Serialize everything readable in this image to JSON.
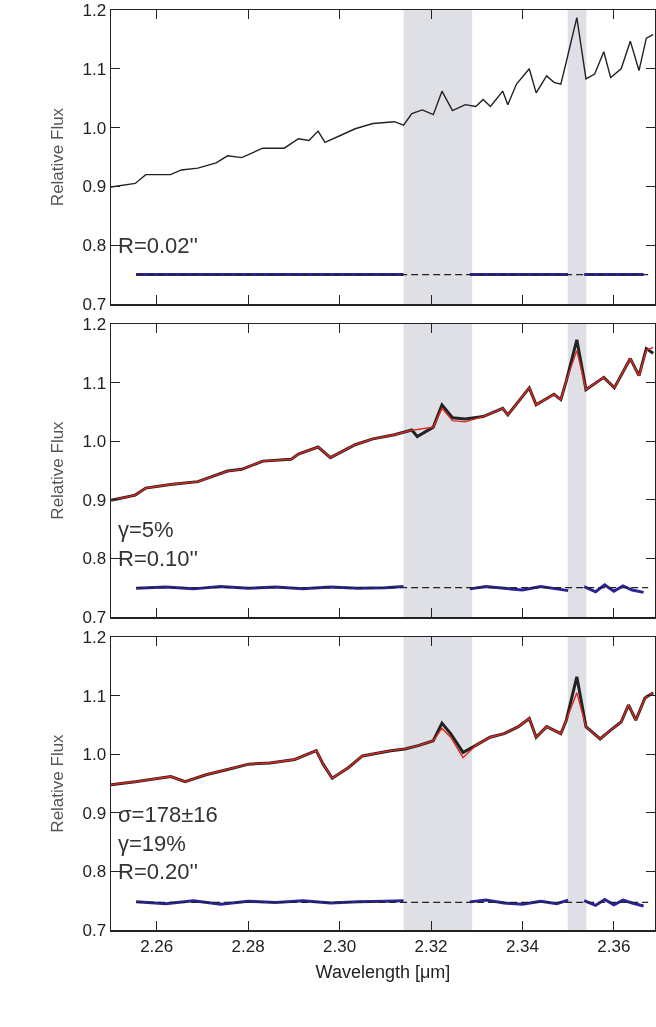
{
  "chart_data": [
    {
      "type": "line",
      "ylabel": "Relative Flux",
      "xlim": [
        2.25,
        2.369
      ],
      "ylim": [
        0.7,
        1.2
      ],
      "xticks": [
        {
          "value": 2.26,
          "label": null
        },
        {
          "value": 2.28,
          "label": null
        },
        {
          "value": 2.3,
          "label": null
        },
        {
          "value": 2.32,
          "label": null
        },
        {
          "value": 2.34,
          "label": null
        },
        {
          "value": 2.36,
          "label": null
        }
      ],
      "yticks": [
        {
          "value": 0.7,
          "label": "0.7"
        },
        {
          "value": 0.8,
          "label": "0.8"
        },
        {
          "value": 0.9,
          "label": "0.9"
        },
        {
          "value": 1.0,
          "label": "1.0"
        },
        {
          "value": 1.1,
          "label": "1.1"
        },
        {
          "value": 1.2,
          "label": "1.2"
        }
      ],
      "tick_labels": "y",
      "grid": false,
      "bands": [
        {
          "axis": "x",
          "from": 2.314,
          "to": 2.329,
          "color": "#dfe0e5"
        },
        {
          "axis": "x",
          "from": 2.3499,
          "to": 2.354,
          "color": "#dfe0e5"
        }
      ],
      "annotations": [
        "R=0.02''"
      ],
      "series": [
        {
          "color": "#222222",
          "x": [
            2.25,
            2.2553,
            2.2576,
            2.263,
            2.2654,
            2.269,
            2.273,
            2.2755,
            2.2786,
            2.2832,
            2.2879,
            2.291,
            2.2933,
            2.2953,
            2.2968,
            2.3003,
            2.3034,
            2.3073,
            2.312,
            2.314,
            2.3158,
            2.3181,
            2.3205,
            2.3224,
            2.3247,
            2.3275,
            2.3298,
            2.3314,
            2.333,
            2.3357,
            2.3368,
            2.3387,
            2.3415,
            2.343,
            2.3453,
            2.3469,
            2.3484,
            2.3496,
            2.3519,
            2.3539,
            2.3558,
            2.3578,
            2.3593,
            2.3616,
            2.3636,
            2.3655,
            2.3671,
            2.3686
          ],
          "values": [
            0.899,
            0.905,
            0.92,
            0.92,
            0.928,
            0.931,
            0.94,
            0.952,
            0.949,
            0.965,
            0.965,
            0.981,
            0.978,
            0.994,
            0.975,
            0.987,
            0.998,
            1.007,
            1.01,
            1.004,
            1.024,
            1.03,
            1.022,
            1.062,
            1.029,
            1.039,
            1.036,
            1.048,
            1.036,
            1.062,
            1.039,
            1.074,
            1.1,
            1.059,
            1.088,
            1.077,
            1.074,
            1.112,
            1.187,
            1.083,
            1.091,
            1.129,
            1.085,
            1.1,
            1.147,
            1.097,
            1.152,
            1.158
          ]
        },
        {
          "color": "#2a2496",
          "x": [
            2.2555,
            2.262,
            2.268,
            2.274,
            2.28,
            2.286,
            2.292,
            2.298,
            2.304,
            2.31,
            2.314,
            2.321,
            2.3285,
            2.332,
            2.336,
            2.34,
            2.344,
            2.3475,
            2.35,
            2.352,
            2.3535,
            2.356,
            2.358,
            2.36,
            2.362,
            2.364,
            2.3665
          ],
          "values": [
            0.75,
            0.75,
            0.75,
            0.75,
            0.75,
            0.75,
            0.75,
            0.75,
            0.75,
            0.75,
            0.75,
            null,
            0.75,
            0.75,
            0.75,
            0.75,
            0.75,
            0.75,
            0.75,
            null,
            0.75,
            0.75,
            0.75,
            0.75,
            0.75,
            0.75,
            0.75
          ]
        },
        {
          "color": "#222222",
          "line_style": "dashed",
          "x": [
            2.2555,
            2.3675
          ],
          "values": [
            0.75,
            0.75
          ]
        }
      ]
    },
    {
      "type": "line",
      "ylabel": "Relative Flux",
      "xlim": [
        2.25,
        2.369
      ],
      "ylim": [
        0.7,
        1.2
      ],
      "xticks": [
        {
          "value": 2.26,
          "label": null
        },
        {
          "value": 2.28,
          "label": null
        },
        {
          "value": 2.3,
          "label": null
        },
        {
          "value": 2.32,
          "label": null
        },
        {
          "value": 2.34,
          "label": null
        },
        {
          "value": 2.36,
          "label": null
        }
      ],
      "yticks": [
        {
          "value": 0.7,
          "label": "0.7"
        },
        {
          "value": 0.8,
          "label": "0.8"
        },
        {
          "value": 0.9,
          "label": "0.9"
        },
        {
          "value": 1.0,
          "label": "1.0"
        },
        {
          "value": 1.1,
          "label": "1.1"
        },
        {
          "value": 1.2,
          "label": "1.2"
        }
      ],
      "tick_labels": "y",
      "grid": false,
      "bands": [
        {
          "axis": "x",
          "from": 2.314,
          "to": 2.329,
          "color": "#dfe0e5"
        },
        {
          "axis": "x",
          "from": 2.3499,
          "to": 2.354,
          "color": "#dfe0e5"
        }
      ],
      "annotations": [
        "γ=5%",
        "R=0.10''"
      ],
      "series": [
        {
          "color": "#222222",
          "x": [
            2.25,
            2.2553,
            2.2576,
            2.263,
            2.269,
            2.2755,
            2.2786,
            2.2832,
            2.2894,
            2.291,
            2.2953,
            2.298,
            2.3034,
            2.3073,
            2.312,
            2.3158,
            2.317,
            2.3205,
            2.3224,
            2.3247,
            2.3275,
            2.3314,
            2.3357,
            2.3368,
            2.3415,
            2.343,
            2.3469,
            2.3484,
            2.3496,
            2.3519,
            2.3539,
            2.3578,
            2.3601,
            2.3636,
            2.3655,
            2.3671,
            2.3686
          ],
          "values": [
            0.899,
            0.908,
            0.92,
            0.926,
            0.931,
            0.949,
            0.952,
            0.966,
            0.969,
            0.978,
            0.99,
            0.972,
            0.994,
            1.004,
            1.011,
            1.019,
            1.008,
            1.024,
            1.062,
            1.04,
            1.038,
            1.042,
            1.056,
            1.045,
            1.091,
            1.062,
            1.08,
            1.071,
            1.103,
            1.173,
            1.088,
            1.109,
            1.091,
            1.141,
            1.112,
            1.158,
            1.15
          ]
        },
        {
          "color": "#e0281e",
          "x": [
            2.25,
            2.2553,
            2.2576,
            2.263,
            2.269,
            2.2755,
            2.2786,
            2.2832,
            2.2894,
            2.291,
            2.2953,
            2.298,
            2.3034,
            2.3073,
            2.312,
            2.3158,
            2.317,
            2.3205,
            2.3224,
            2.3247,
            2.3275,
            2.3314,
            2.3357,
            2.3368,
            2.3415,
            2.343,
            2.3469,
            2.3484,
            2.3496,
            2.3519,
            2.3539,
            2.3578,
            2.3601,
            2.3636,
            2.3655,
            2.3671,
            2.3686
          ],
          "values": [
            0.899,
            0.908,
            0.92,
            0.926,
            0.931,
            0.949,
            0.952,
            0.966,
            0.969,
            0.978,
            0.99,
            0.972,
            0.994,
            1.004,
            1.011,
            1.019,
            1.02,
            1.024,
            1.056,
            1.035,
            1.033,
            1.042,
            1.056,
            1.045,
            1.091,
            1.062,
            1.08,
            1.071,
            1.103,
            1.155,
            1.088,
            1.109,
            1.091,
            1.141,
            1.112,
            1.155,
            1.16
          ]
        },
        {
          "color": "#2a2496",
          "x": [
            2.2555,
            2.262,
            2.268,
            2.274,
            2.28,
            2.286,
            2.292,
            2.298,
            2.304,
            2.31,
            2.314,
            2.321,
            2.3285,
            2.332,
            2.336,
            2.34,
            2.344,
            2.3475,
            2.35,
            2.352,
            2.3535,
            2.356,
            2.358,
            2.36,
            2.362,
            2.364,
            2.3665
          ],
          "values": [
            0.749,
            0.751,
            0.748,
            0.752,
            0.749,
            0.751,
            0.748,
            0.751,
            0.749,
            0.75,
            0.752,
            null,
            0.748,
            0.752,
            0.749,
            0.746,
            0.752,
            0.748,
            0.745,
            null,
            0.752,
            0.743,
            0.755,
            0.744,
            0.753,
            0.746,
            0.742
          ]
        },
        {
          "color": "#222222",
          "line_style": "dashed",
          "x": [
            2.2555,
            2.3675
          ],
          "values": [
            0.75,
            0.75
          ]
        }
      ]
    },
    {
      "type": "line",
      "ylabel": "Relative Flux",
      "xlabel": "Wavelength [μm]",
      "xlim": [
        2.25,
        2.369
      ],
      "ylim": [
        0.7,
        1.2
      ],
      "xticks": [
        {
          "value": 2.26,
          "label": "2.26"
        },
        {
          "value": 2.28,
          "label": "2.28"
        },
        {
          "value": 2.3,
          "label": "2.30"
        },
        {
          "value": 2.32,
          "label": "2.32"
        },
        {
          "value": 2.34,
          "label": "2.34"
        },
        {
          "value": 2.36,
          "label": "2.36"
        }
      ],
      "yticks": [
        {
          "value": 0.7,
          "label": "0.7"
        },
        {
          "value": 0.8,
          "label": "0.8"
        },
        {
          "value": 0.9,
          "label": "0.9"
        },
        {
          "value": 1.0,
          "label": "1.0"
        },
        {
          "value": 1.1,
          "label": "1.1"
        },
        {
          "value": 1.2,
          "label": "1.2"
        }
      ],
      "grid": false,
      "bands": [
        {
          "axis": "x",
          "from": 2.314,
          "to": 2.329,
          "color": "#dfe0e5"
        },
        {
          "axis": "x",
          "from": 2.3499,
          "to": 2.354,
          "color": "#dfe0e5"
        }
      ],
      "annotations": [
        "σ=178±16",
        "γ=19%",
        "R=0.20''"
      ],
      "series": [
        {
          "color": "#222222",
          "x": [
            2.25,
            2.2553,
            2.2631,
            2.2662,
            2.2708,
            2.2755,
            2.2801,
            2.2848,
            2.2902,
            2.2949,
            2.2964,
            2.2984,
            2.3019,
            2.305,
            2.3112,
            2.3143,
            2.3174,
            2.3205,
            2.3224,
            2.3243,
            2.327,
            2.3298,
            2.3329,
            2.336,
            2.3391,
            2.3415,
            2.343,
            2.3453,
            2.3484,
            2.3496,
            2.3519,
            2.3539,
            2.357,
            2.3593,
            2.3616,
            2.3632,
            2.3648,
            2.3668,
            2.3686
          ],
          "values": [
            0.948,
            0.953,
            0.962,
            0.953,
            0.965,
            0.974,
            0.983,
            0.985,
            0.991,
            1.006,
            0.983,
            0.959,
            0.977,
            0.997,
            1.006,
            1.009,
            1.015,
            1.023,
            1.053,
            1.035,
            1.003,
            1.015,
            1.029,
            1.035,
            1.047,
            1.061,
            1.029,
            1.047,
            1.035,
            1.058,
            1.132,
            1.047,
            1.026,
            1.041,
            1.055,
            1.084,
            1.058,
            1.096,
            1.105
          ]
        },
        {
          "color": "#e0281e",
          "x": [
            2.25,
            2.2553,
            2.2631,
            2.2662,
            2.2708,
            2.2755,
            2.2801,
            2.2848,
            2.2902,
            2.2949,
            2.2964,
            2.2984,
            2.3019,
            2.305,
            2.3112,
            2.3143,
            2.3174,
            2.3205,
            2.3224,
            2.3243,
            2.327,
            2.3298,
            2.3329,
            2.336,
            2.3391,
            2.3415,
            2.343,
            2.3453,
            2.3484,
            2.3496,
            2.3519,
            2.3539,
            2.357,
            2.3593,
            2.3616,
            2.3632,
            2.3648,
            2.3668,
            2.3686
          ],
          "values": [
            0.948,
            0.953,
            0.962,
            0.953,
            0.965,
            0.974,
            0.983,
            0.985,
            0.991,
            1.006,
            0.983,
            0.959,
            0.977,
            0.997,
            1.006,
            1.009,
            1.015,
            1.023,
            1.044,
            1.029,
            0.994,
            1.015,
            1.029,
            1.035,
            1.047,
            1.061,
            1.029,
            1.047,
            1.035,
            1.058,
            1.105,
            1.047,
            1.026,
            1.041,
            1.055,
            1.084,
            1.058,
            1.096,
            1.105
          ]
        },
        {
          "color": "#2a2496",
          "x": [
            2.2555,
            2.262,
            2.268,
            2.274,
            2.28,
            2.286,
            2.292,
            2.298,
            2.304,
            2.31,
            2.314,
            2.321,
            2.3285,
            2.332,
            2.336,
            2.34,
            2.344,
            2.3475,
            2.35,
            2.352,
            2.3535,
            2.356,
            2.358,
            2.36,
            2.362,
            2.364,
            2.3665
          ],
          "values": [
            0.748,
            0.745,
            0.75,
            0.744,
            0.749,
            0.747,
            0.75,
            0.746,
            0.748,
            0.749,
            0.75,
            null,
            0.748,
            0.751,
            0.746,
            0.744,
            0.749,
            0.745,
            0.751,
            null,
            0.75,
            0.742,
            0.752,
            0.743,
            0.751,
            0.746,
            0.741
          ]
        },
        {
          "color": "#222222",
          "line_style": "dashed",
          "x": [
            2.2555,
            2.3675
          ],
          "values": [
            0.747,
            0.747
          ]
        }
      ]
    }
  ]
}
